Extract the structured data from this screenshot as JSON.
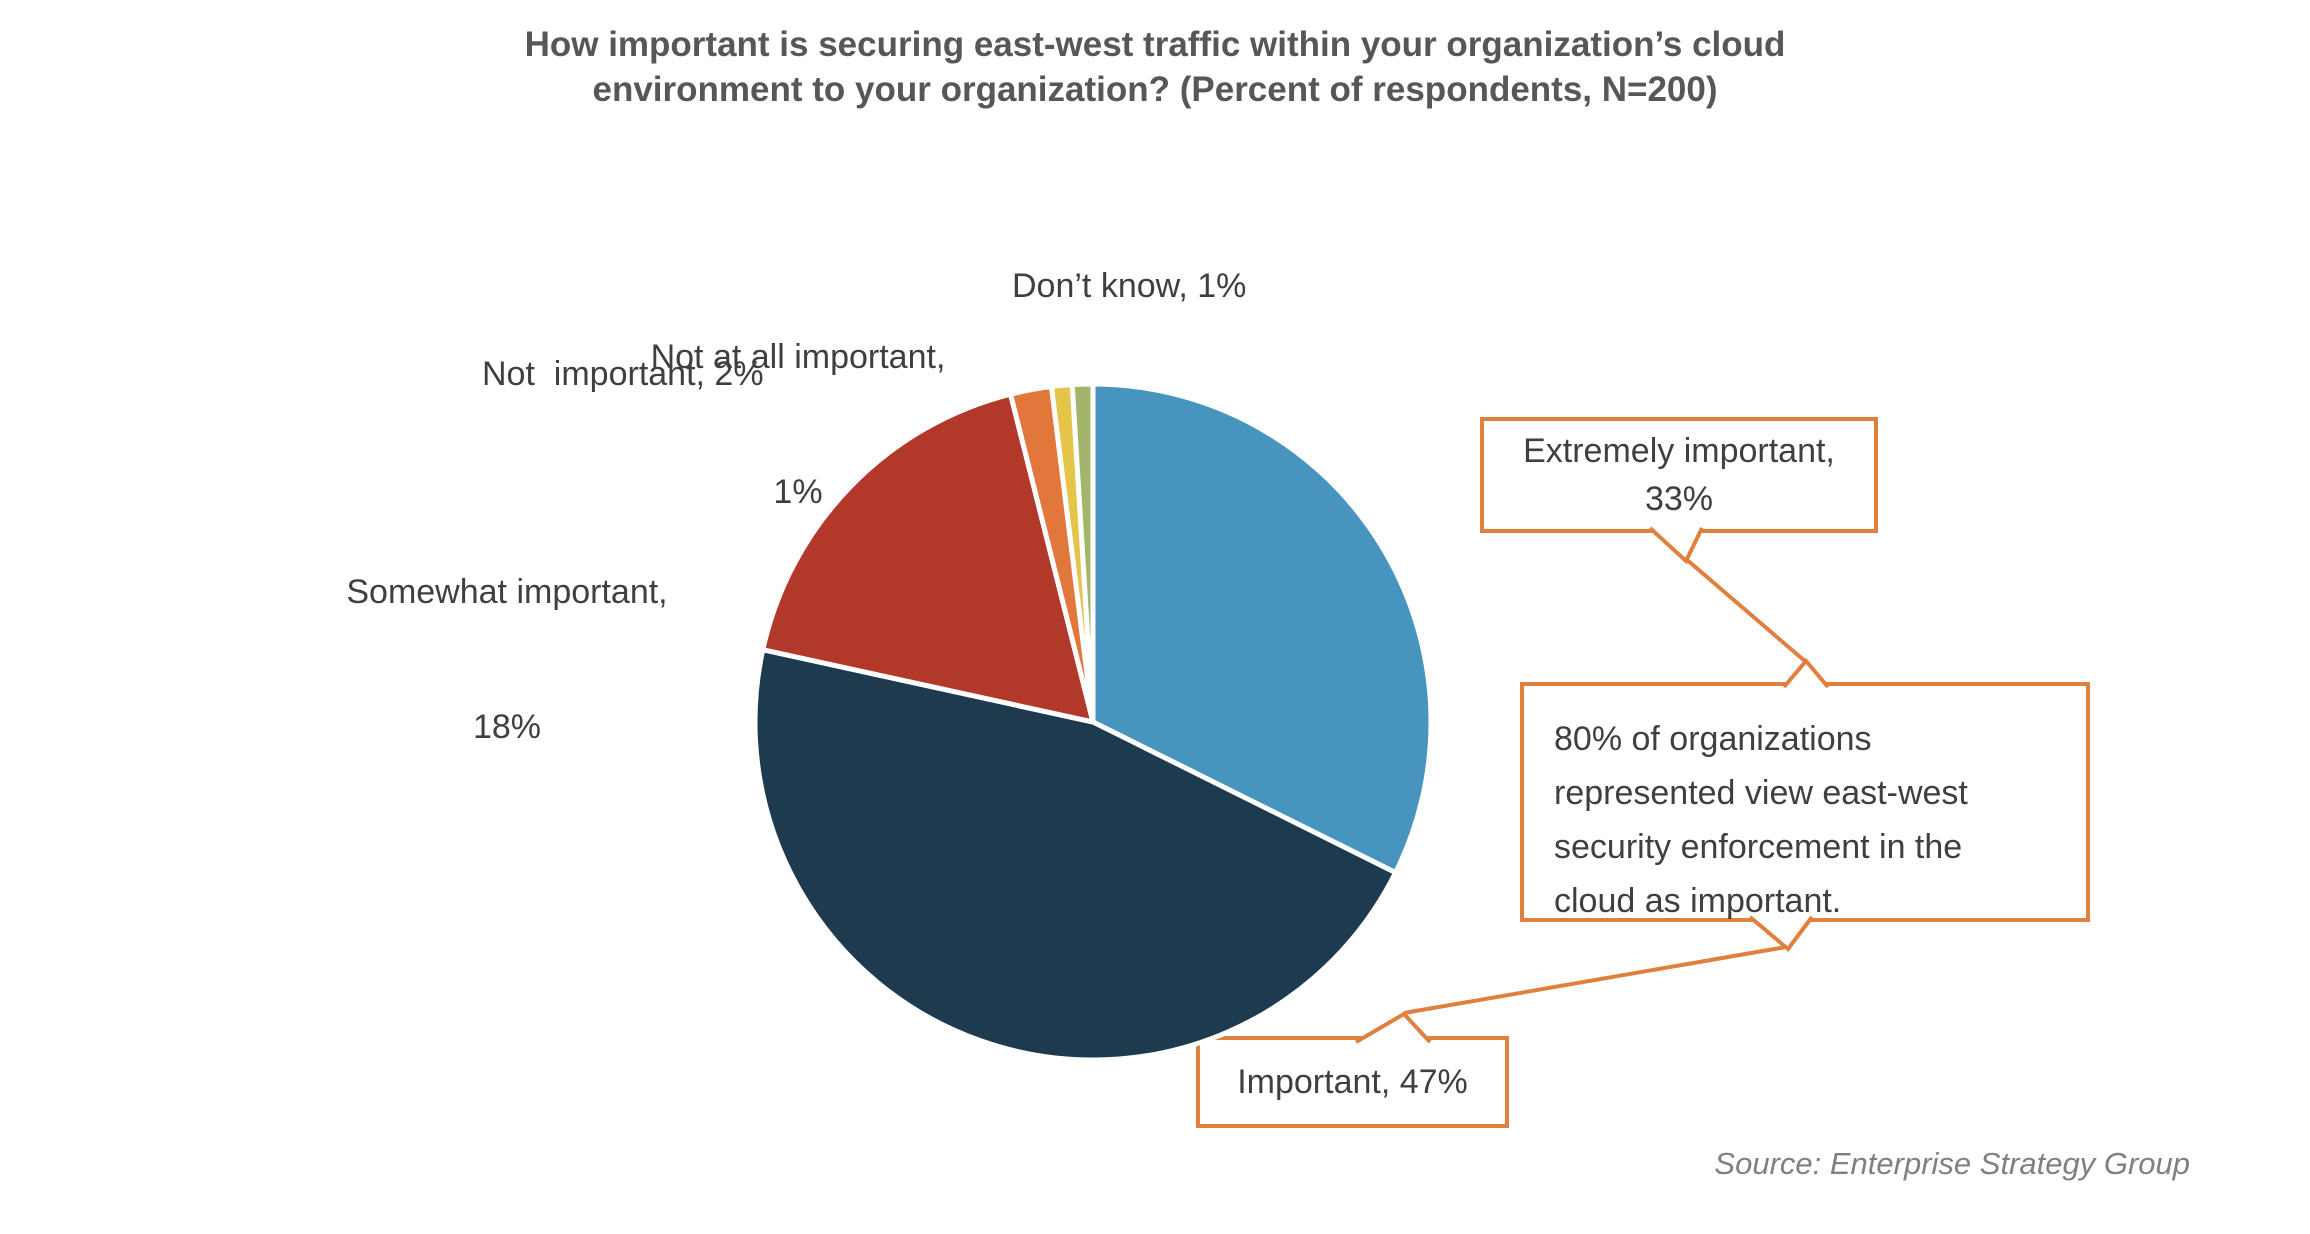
{
  "title": {
    "line1": "How important is securing east-west traffic within your organization’s cloud",
    "line2": "environment to your organization? (Percent of respondents, N=200)"
  },
  "chart_data": {
    "type": "pie",
    "title": "How important is securing east-west traffic within your organization’s cloud environment to your organization? (Percent of respondents, N=200)",
    "n_respondents": 200,
    "unit": "percent",
    "categories": [
      "Extremely important",
      "Important",
      "Somewhat important",
      "Not important",
      "Not at all important",
      "Don’t know"
    ],
    "values": [
      33,
      47,
      18,
      2,
      1,
      1
    ],
    "colors": [
      "#4795BE",
      "#1D3A4F",
      "#B2392A",
      "#E2773B",
      "#E5C44A",
      "#A3B46B"
    ],
    "start_angle_deg": 0,
    "direction": "clockwise",
    "slice_border_color": "#ffffff",
    "legend": "none (direct data labels)"
  },
  "labels": {
    "not_at_all": {
      "line1": "Not at all important,",
      "line2": "1%"
    },
    "dont_know": {
      "text": "Don’t know, 1%"
    },
    "not_important": {
      "text": "Not  important, 2%"
    },
    "somewhat": {
      "line1": "Somewhat important,",
      "line2": "18%"
    }
  },
  "callouts": {
    "extremely": {
      "line1": "Extremely important,",
      "line2": "33%"
    },
    "insight": {
      "text": "80% of organizations represented view east-west security enforcement in the cloud as important."
    },
    "important": {
      "text": "Important, 47%"
    }
  },
  "source": {
    "text": "Source: Enterprise Strategy Group"
  },
  "colors": {
    "accent_orange": "#E0803E",
    "title_gray": "#575757",
    "label_gray": "#3F3F3F",
    "source_gray": "#808080",
    "background": "#ffffff"
  }
}
